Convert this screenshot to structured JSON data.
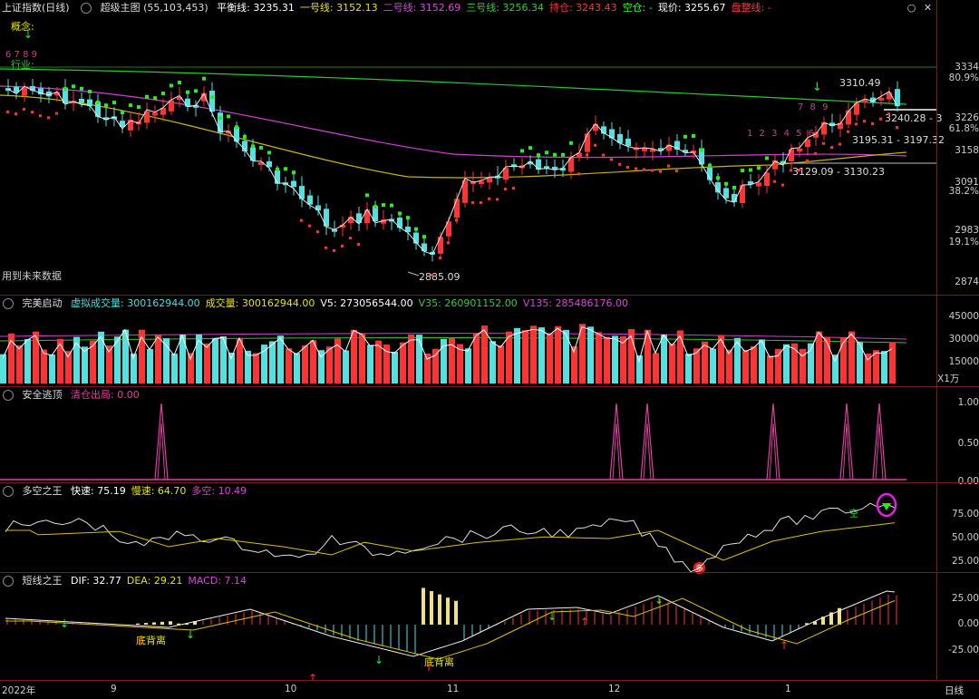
{
  "main": {
    "title": "上证指数(日线)",
    "indicator_name": "超级主图",
    "params": "(55,103,453)",
    "items": [
      {
        "label": "平衡线:",
        "value": "3235.31",
        "color": "#ffffff"
      },
      {
        "label": "一号线:",
        "value": "3152.13",
        "color": "#e5e500"
      },
      {
        "label": "二号线:",
        "value": "3152.69",
        "color": "#e040e0"
      },
      {
        "label": "三号线:",
        "value": "3256.34",
        "color": "#33cc33"
      },
      {
        "label": "持仓:",
        "value": "3243.43",
        "color": "#ff3333"
      },
      {
        "label": "空仓:",
        "value": "-",
        "color": "#33ff33"
      },
      {
        "label": "现价:",
        "value": "3255.67",
        "color": "#ffffff"
      },
      {
        "label": "盘整线:",
        "value": "-",
        "color": "#ff3333"
      }
    ],
    "concept_label": "概念:",
    "industry_label": "行业:",
    "future_data_label": "用到未来数据",
    "y_ticks": [
      "3334",
      "80.9%",
      "3226",
      "61.8%",
      "3158",
      "3091",
      "38.2%",
      "2983",
      "19.1%",
      "2874"
    ],
    "annotations": {
      "high": "3310.49",
      "low": "2885.09",
      "a1": "3240.28 - 3",
      "a2": "3195.31 - 3197.32",
      "a3": "3129.09 - 3130.23",
      "seq_small": "6 7 8 9",
      "seq_mid": "1 2 3 4 5 6",
      "seq_mid2": "7 8 9"
    }
  },
  "volume": {
    "name": "完美启动",
    "items": [
      {
        "label": "虚拟成交量:",
        "value": "300162944.00",
        "color": "#44e0e0"
      },
      {
        "label": "成交量:",
        "value": "300162944.00",
        "color": "#e5e500"
      },
      {
        "label": "V5:",
        "value": "273056544.00",
        "color": "#ffffff"
      },
      {
        "label": "V35:",
        "value": "260901152.00",
        "color": "#33cc33"
      },
      {
        "label": "V135:",
        "value": "285486176.00",
        "color": "#e040e0"
      }
    ],
    "y_ticks": [
      "45000",
      "30000",
      "15000"
    ],
    "unit": "X1万"
  },
  "escape": {
    "name": "安全逃顶",
    "items": [
      {
        "label": "清仓出局:",
        "value": "0.00",
        "color": "#e040a0"
      }
    ],
    "y_ticks": [
      "1.00",
      "0.50",
      "0.00"
    ]
  },
  "duokong": {
    "name": "多空之王",
    "items": [
      {
        "label": "快速:",
        "value": "75.19",
        "color": "#ffffff"
      },
      {
        "label": "慢速:",
        "value": "64.70",
        "color": "#e5e500"
      },
      {
        "label": "多空:",
        "value": "10.49",
        "color": "#e040e0"
      }
    ],
    "y_ticks": [
      "75.00",
      "50.00",
      "25.00"
    ],
    "tag_kong": "空",
    "tag_duo": "多"
  },
  "macd": {
    "name": "短线之王",
    "items": [
      {
        "label": "DIF:",
        "value": "32.77",
        "color": "#ffffff"
      },
      {
        "label": "DEA:",
        "value": "29.21",
        "color": "#e5e500"
      },
      {
        "label": "MACD:",
        "value": "7.14",
        "color": "#e040e0"
      }
    ],
    "y_ticks": [
      "25.00",
      "0.00",
      "-25.00"
    ],
    "divergence_label": "底背离"
  },
  "x_axis": {
    "labels": [
      "2022年",
      "9",
      "10",
      "11",
      "12",
      "1"
    ],
    "period": "日线"
  },
  "colors": {
    "up": "#ff3333",
    "down": "#55e0e0",
    "separator": "#7a1a1a"
  }
}
